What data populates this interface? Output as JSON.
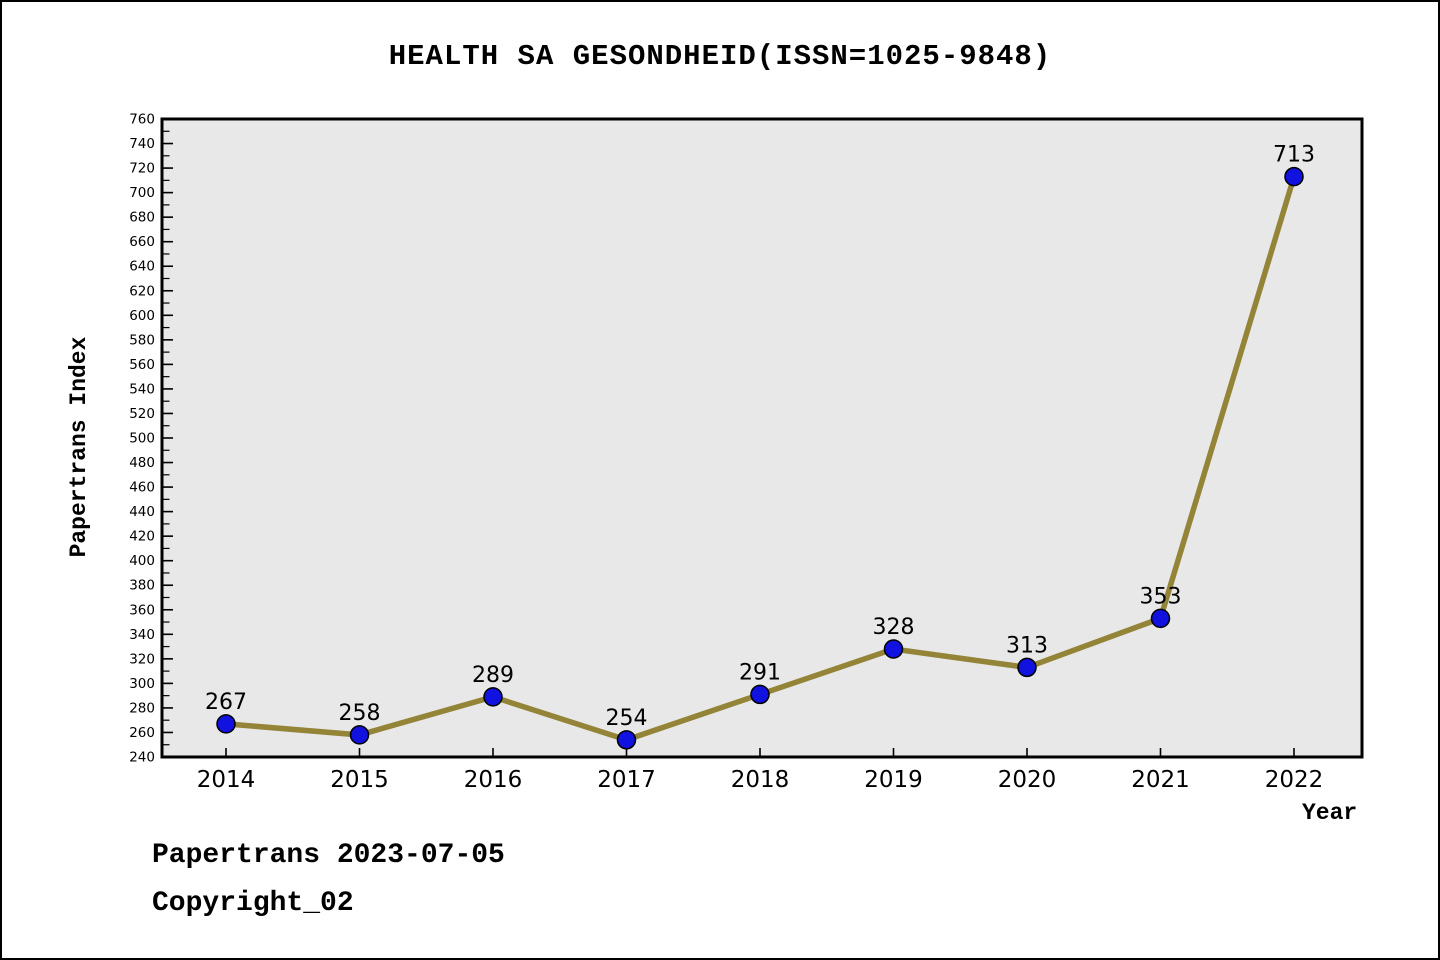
{
  "page": {
    "title": "HEALTH SA GESONDHEID(ISSN=1025-9848)",
    "footer_line1": "Papertrans 2023-07-05",
    "footer_line2": "Copyright_02"
  },
  "chart_data": {
    "type": "line",
    "title": "HEALTH SA GESONDHEID(ISSN=1025-9848)",
    "xlabel": "Year",
    "ylabel": "Papertrans Index",
    "categories": [
      "2014",
      "2015",
      "2016",
      "2017",
      "2018",
      "2019",
      "2020",
      "2021",
      "2022"
    ],
    "values": [
      267,
      258,
      289,
      254,
      291,
      328,
      313,
      353,
      713
    ],
    "ylim": [
      240,
      760
    ],
    "ytick_step": 20,
    "ytick_minor_step": 10,
    "grid": false,
    "legend": "none",
    "annotations": [
      "267",
      "258",
      "289",
      "254",
      "291",
      "328",
      "313",
      "353",
      "713"
    ],
    "colors": {
      "line": "#938438",
      "marker_fill": "#1111E0",
      "marker_edge": "#000000",
      "plot_bg": "#E8E8E8",
      "axis": "#000000",
      "text": "#000000"
    }
  }
}
